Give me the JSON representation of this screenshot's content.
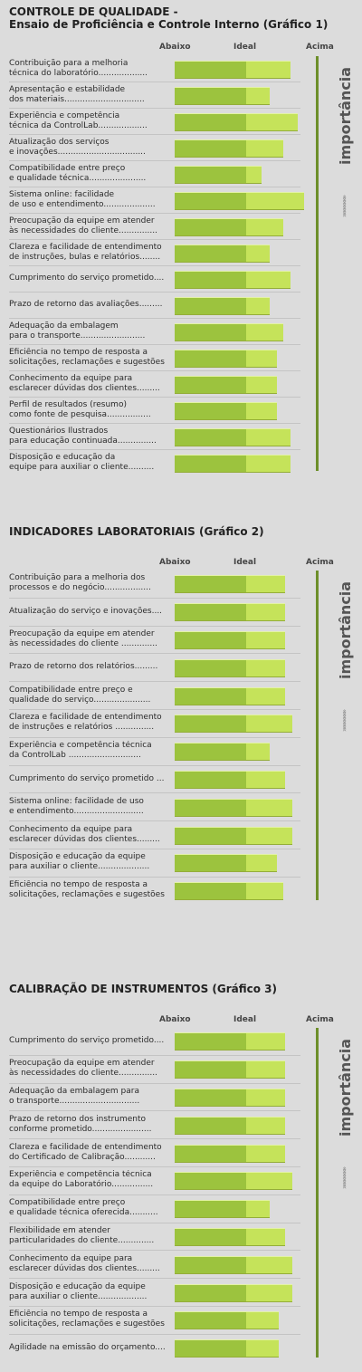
{
  "header": {
    "below": "Abaixo",
    "ideal": "Ideal",
    "above": "Acima"
  },
  "importance_label": "importância",
  "chart_data": [
    {
      "type": "bar",
      "title": "CONTROLE DE QUALIDADE -",
      "subtitle": "Ensaio de Proficiência e Controle Interno",
      "graph_label": "(Gráfico 1)",
      "xlabel": "",
      "ylabel": "",
      "scale_labels": [
        "Abaixo",
        "Ideal",
        "Acima"
      ],
      "value_axis": "0 = Abaixo, 1 = Ideal, 2 = Acima",
      "ylim": [
        0,
        2
      ],
      "categories": [
        "Contribuição para a melhoria\ntécnica do laboratório...................",
        "Apresentação e estabilidade\ndos materiais...............................",
        "Experiência e competência\ntécnica da ControlLab...................",
        "Atualização dos serviços\ne inovações..................................",
        "Compatibilidade entre preço\ne qualidade técnica......................",
        "Sistema online: facilidade\nde uso e entendimento....................",
        "Preocupação da equipe em atender\nàs necessidades do cliente...............",
        "Clareza e facilidade de entendimento\nde instruções, bulas e relatórios........",
        "Cumprimento do serviço prometido....",
        "Prazo de retorno das avaliações.........",
        "Adequação da embalagem\npara o transporte.........................",
        "Eficiência no tempo de resposta a\nsolicitações, reclamações e sugestões",
        "Conhecimento da equipe para\nesclarecer dúvidas dos clientes.........",
        "Perfil de resultados (resumo)\n como fonte de pesquisa.................",
        "Questionários Ilustrados\npara educação continuada...............",
        "Disposição e educação da\nequipe para auxiliar o cliente.........."
      ],
      "values": [
        1.62,
        1.33,
        1.72,
        1.52,
        1.22,
        1.81,
        1.52,
        1.33,
        1.62,
        1.33,
        1.52,
        1.43,
        1.43,
        1.43,
        1.62,
        1.62
      ]
    },
    {
      "type": "bar",
      "title": "INDICADORES LABORATORIAIS",
      "subtitle": "",
      "graph_label": "(Gráfico 2)",
      "xlabel": "",
      "ylabel": "",
      "scale_labels": [
        "Abaixo",
        "Ideal",
        "Acima"
      ],
      "value_axis": "0 = Abaixo, 1 = Ideal, 2 = Acima",
      "ylim": [
        0,
        2
      ],
      "categories": [
        "Contribuição para a melhoria dos\nprocessos e do negócio..................",
        "Atualização do serviço e inovações....",
        "Preocupação da equipe em atender\nàs necessidades do cliente ..............",
        "Prazo de retorno dos relatórios.........",
        "Compatibilidade entre preço e\nqualidade do serviço......................",
        "Clareza e facilidade de entendimento\nde instruções e relatórios ...............",
        "Experiência e competência técnica\n da ControlLab ............................",
        "Cumprimento do serviço prometido ...",
        "Sistema online: facilidade de uso\ne entendimento...........................",
        "Conhecimento da equipe para\nesclarecer dúvidas dos clientes.........",
        "Disposição e educação da equipe\npara auxiliar o cliente....................",
        "Eficiência no tempo de resposta a\nsolicitações, reclamações e sugestões"
      ],
      "values": [
        1.55,
        1.55,
        1.55,
        1.55,
        1.55,
        1.64,
        1.33,
        1.55,
        1.64,
        1.64,
        1.43,
        1.52
      ]
    },
    {
      "type": "bar",
      "title": "CALIBRAÇÃO DE INSTRUMENTOS",
      "subtitle": "",
      "graph_label": "(Gráfico 3)",
      "xlabel": "",
      "ylabel": "",
      "scale_labels": [
        "Abaixo",
        "Ideal",
        "Acima"
      ],
      "value_axis": "0 = Abaixo, 1 = Ideal, 2 = Acima",
      "ylim": [
        0,
        2
      ],
      "categories": [
        "Cumprimento do serviço prometido....",
        "Preocupação da equipe em atender\nàs necessidades do cliente...............",
        "Adequação da embalagem para\no transporte...............................",
        "Prazo de retorno dos instrumento\nconforme prometido.......................",
        "Clareza e facilidade de entendimento\ndo Certificado de Calibração............",
        "Experiência e competência técnica\nda equipe do Laboratório................",
        "Compatibilidade entre preço\ne qualidade técnica oferecida...........",
        "Flexibilidade em atender\n particularidades do cliente..............",
        "Conhecimento da equipe para\nesclarecer dúvidas dos clientes.........",
        "Disposição e educação da equipe\n para auxiliar o cliente...................",
        "Eficiência no tempo de resposta a\nsolicitações, reclamações e sugestões",
        "Agilidade na emissão do orçamento...."
      ],
      "values": [
        1.55,
        1.55,
        1.55,
        1.55,
        1.55,
        1.64,
        1.33,
        1.55,
        1.64,
        1.64,
        1.45,
        1.45
      ]
    }
  ]
}
